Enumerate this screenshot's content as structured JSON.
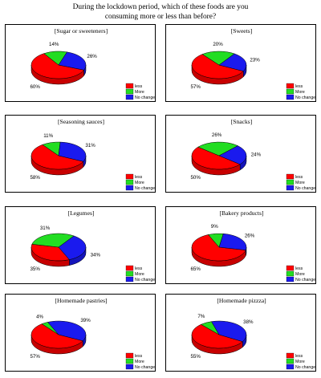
{
  "title_lines": [
    "During the lockdown period, which of these foods are you",
    "consuming more or less than before?"
  ],
  "legend_labels": [
    "less",
    "More",
    "No change"
  ],
  "colors": {
    "less": "#ff0000",
    "More": "#22dd22",
    "No change": "#1a1aee",
    "edge": "#000000"
  },
  "chart_data": [
    {
      "type": "pie",
      "title": "[Sugar or sweeteners]",
      "categories": [
        "less",
        "More",
        "No change"
      ],
      "values": [
        60,
        14,
        26
      ],
      "labels": [
        "60%",
        "14%",
        "26%"
      ]
    },
    {
      "type": "pie",
      "title": "[Sweets]",
      "categories": [
        "less",
        "More",
        "No change"
      ],
      "values": [
        57,
        20,
        23
      ],
      "labels": [
        "57%",
        "20%",
        "23%"
      ]
    },
    {
      "type": "pie",
      "title": "[Seasoning sauces]",
      "categories": [
        "less",
        "More",
        "No change"
      ],
      "values": [
        58,
        11,
        31
      ],
      "labels": [
        "58%",
        "11%",
        "31%"
      ]
    },
    {
      "type": "pie",
      "title": "[Snacks]",
      "categories": [
        "less",
        "More",
        "No change"
      ],
      "values": [
        50,
        26,
        24
      ],
      "labels": [
        "50%",
        "26%",
        "24%"
      ]
    },
    {
      "type": "pie",
      "title": "[Legumes]",
      "categories": [
        "less",
        "More",
        "No change"
      ],
      "values": [
        35,
        31,
        34
      ],
      "labels": [
        "35%",
        "31%",
        "34%"
      ]
    },
    {
      "type": "pie",
      "title": "[Bakery products]",
      "categories": [
        "less",
        "More",
        "No change"
      ],
      "values": [
        65,
        9,
        26
      ],
      "labels": [
        "65%",
        "9%",
        "26%"
      ]
    },
    {
      "type": "pie",
      "title": "[Homemade pastries]",
      "categories": [
        "less",
        "More",
        "No change"
      ],
      "values": [
        57,
        4,
        39
      ],
      "labels": [
        "57%",
        "4%",
        "39%"
      ]
    },
    {
      "type": "pie",
      "title": "[Homemade pizzza]",
      "categories": [
        "less",
        "More",
        "No change"
      ],
      "values": [
        55,
        7,
        38
      ],
      "labels": [
        "55%",
        "7%",
        "38%"
      ]
    }
  ]
}
